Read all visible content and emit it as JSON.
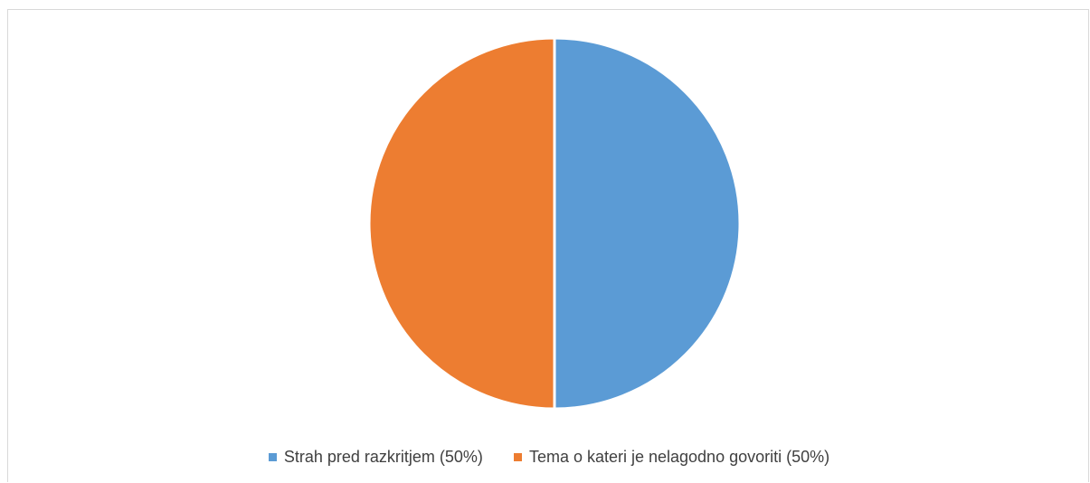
{
  "chart_data": {
    "type": "pie",
    "title": "",
    "categories": [
      "Strah pred razkritjem (50%)",
      "Tema o kateri je nelagodno govoriti (50%)"
    ],
    "values": [
      50,
      50
    ],
    "colors": [
      "#5B9BD5",
      "#ED7D31"
    ],
    "legend_position": "bottom",
    "start_angle": "top, clockwise"
  },
  "legend": {
    "items": [
      {
        "label": "Strah pred razkritjem (50%)",
        "color": "#5B9BD5"
      },
      {
        "label": "Tema o kateri je nelagodno govoriti (50%)",
        "color": "#ED7D31"
      }
    ]
  }
}
